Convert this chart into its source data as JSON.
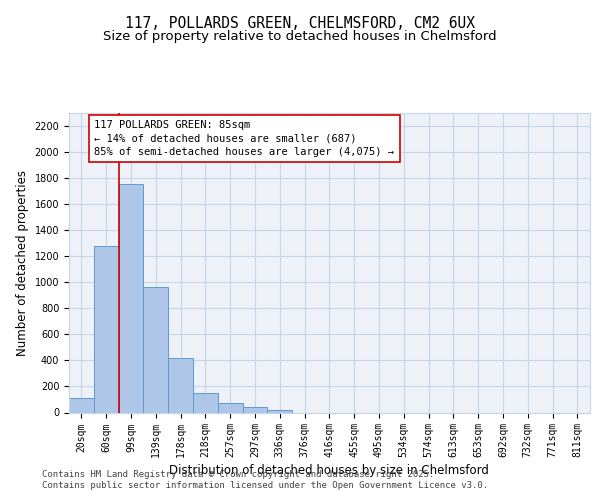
{
  "title1": "117, POLLARDS GREEN, CHELMSFORD, CM2 6UX",
  "title2": "Size of property relative to detached houses in Chelmsford",
  "xlabel": "Distribution of detached houses by size in Chelmsford",
  "ylabel": "Number of detached properties",
  "categories": [
    "20sqm",
    "60sqm",
    "99sqm",
    "139sqm",
    "178sqm",
    "218sqm",
    "257sqm",
    "297sqm",
    "336sqm",
    "376sqm",
    "416sqm",
    "455sqm",
    "495sqm",
    "534sqm",
    "574sqm",
    "613sqm",
    "653sqm",
    "692sqm",
    "732sqm",
    "771sqm",
    "811sqm"
  ],
  "values": [
    110,
    1280,
    1750,
    960,
    420,
    150,
    70,
    40,
    22,
    0,
    0,
    0,
    0,
    0,
    0,
    0,
    0,
    0,
    0,
    0,
    0
  ],
  "bar_color": "#aec6e8",
  "bar_edgecolor": "#5b9bd5",
  "vline_color": "#cc0000",
  "vline_x": 1.5,
  "annotation_text": "117 POLLARDS GREEN: 85sqm\n← 14% of detached houses are smaller (687)\n85% of semi-detached houses are larger (4,075) →",
  "annotation_box_color": "#ffffff",
  "annotation_box_edgecolor": "#cc0000",
  "ylim": [
    0,
    2300
  ],
  "yticks": [
    0,
    200,
    400,
    600,
    800,
    1000,
    1200,
    1400,
    1600,
    1800,
    2000,
    2200
  ],
  "grid_color": "#c8d4e8",
  "background_color": "#eef2f8",
  "footer1": "Contains HM Land Registry data © Crown copyright and database right 2025.",
  "footer2": "Contains public sector information licensed under the Open Government Licence v3.0.",
  "title_fontsize": 10.5,
  "subtitle_fontsize": 9.5,
  "label_fontsize": 8.5,
  "tick_fontsize": 7,
  "annot_fontsize": 7.5,
  "footer_fontsize": 6.5
}
